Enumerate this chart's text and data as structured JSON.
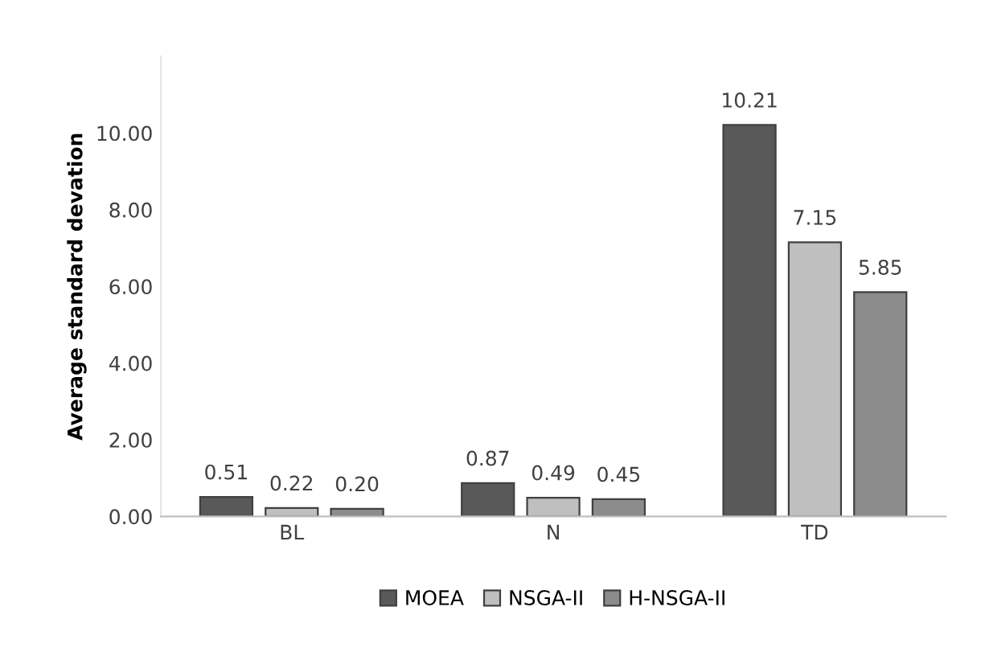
{
  "chart_data": {
    "type": "bar",
    "ylabel": "Average standard devation",
    "categories": [
      "BL",
      "N",
      "TD"
    ],
    "series": [
      {
        "name": "MOEA",
        "color": "#595959",
        "values": [
          0.51,
          0.87,
          10.21
        ],
        "value_labels": [
          "0.51",
          "0.87",
          "10.21"
        ]
      },
      {
        "name": "NSGA-II",
        "color": "#bfbfbf",
        "values": [
          0.22,
          0.49,
          7.15
        ],
        "value_labels": [
          "0.22",
          "0.49",
          "7.15"
        ]
      },
      {
        "name": "H-NSGA-II",
        "color": "#8c8c8c",
        "values": [
          0.2,
          0.45,
          5.85
        ],
        "value_labels": [
          "0.20",
          "0.45",
          "5.85"
        ]
      }
    ],
    "ylim": [
      0,
      12
    ],
    "yticks": [
      {
        "value": 0,
        "label": "0.00"
      },
      {
        "value": 2,
        "label": "2.00"
      },
      {
        "value": 4,
        "label": "4.00"
      },
      {
        "value": 6,
        "label": "6.00"
      },
      {
        "value": 8,
        "label": "8.00"
      },
      {
        "value": 10,
        "label": "10.00"
      }
    ],
    "grid": false,
    "legend": "bottom"
  }
}
